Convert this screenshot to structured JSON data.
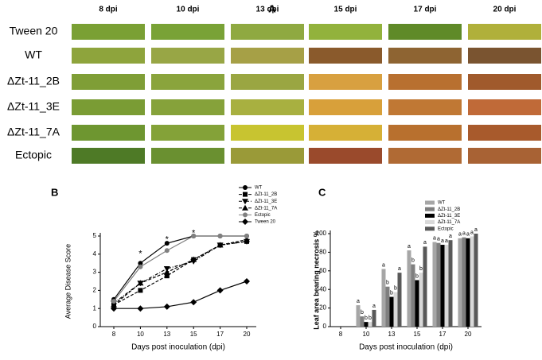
{
  "figure_a": {
    "panel_label": "A",
    "columns": [
      "8 dpi",
      "10 dpi",
      "13 dpi",
      "15 dpi",
      "17 dpi",
      "20 dpi"
    ],
    "rows": [
      "Tween 20",
      "WT",
      "ΔZt-11_2B",
      "ΔZt-11_3E",
      "ΔZt-11_7A",
      "Ectopic"
    ]
  },
  "chart_data": [
    {
      "type": "line",
      "panel_label": "B",
      "x_label": "Days post inoculation (dpi)",
      "y_label": "Average Disease Score",
      "categories": [
        "8",
        "10",
        "13",
        "15",
        "17",
        "20"
      ],
      "ylim": [
        0,
        5
      ],
      "yticks": [
        0,
        1,
        2,
        3,
        4,
        5
      ],
      "series": [
        {
          "name": "WT",
          "color": "#000000",
          "marker": "circle",
          "line_style": "solid",
          "values": [
            1.5,
            3.5,
            4.6,
            5,
            5,
            5
          ]
        },
        {
          "name": "ΔZt-11_2B",
          "color": "#000000",
          "marker": "square",
          "line_style": "dashed",
          "values": [
            1.2,
            2.0,
            2.8,
            3.7,
            4.5,
            4.7
          ]
        },
        {
          "name": "ΔZt-11_3E",
          "color": "#000000",
          "marker": "triangle-down",
          "line_style": "dashdot",
          "values": [
            1.3,
            2.4,
            3.2,
            3.6,
            4.5,
            4.7
          ]
        },
        {
          "name": "ΔZt-11_7A",
          "color": "#000000",
          "marker": "triangle-up",
          "line_style": "dashed",
          "values": [
            1.2,
            2.4,
            3.0,
            3.7,
            4.5,
            4.8
          ]
        },
        {
          "name": "Ectopic",
          "color": "#808080",
          "marker": "circle",
          "line_style": "solid",
          "values": [
            1.4,
            3.3,
            4.2,
            5,
            5,
            5
          ]
        },
        {
          "name": "Tween 20",
          "color": "#000000",
          "marker": "diamond",
          "line_style": "solid",
          "values": [
            1,
            1,
            1.1,
            1.35,
            2,
            2.5
          ]
        }
      ],
      "annotations": [
        {
          "text": "*",
          "x": "10",
          "y": 4.0
        },
        {
          "text": "*",
          "x": "13",
          "y": 4.8
        },
        {
          "text": "*",
          "x": "15",
          "y": 5.15
        }
      ]
    },
    {
      "type": "bar",
      "panel_label": "C",
      "x_label": "Days post inoculation (dpi)",
      "y_label": "Leaf area bearing necrosis %",
      "categories": [
        "8",
        "10",
        "13",
        "15",
        "17",
        "20"
      ],
      "ylim": [
        0,
        100
      ],
      "yticks": [
        0,
        20,
        40,
        60,
        80,
        100
      ],
      "series": [
        {
          "name": "WT",
          "color": "#a6a6a6",
          "values": [
            0,
            23,
            62,
            82,
            91,
            95
          ],
          "letters": [
            null,
            "a",
            "a",
            "a",
            "a",
            "a"
          ]
        },
        {
          "name": "ΔZt-11_2B",
          "color": "#7f7f7f",
          "values": [
            0,
            11,
            43,
            67,
            90,
            96
          ],
          "letters": [
            null,
            "b",
            "b",
            "b",
            "a",
            "a"
          ]
        },
        {
          "name": "ΔZt-11_3E",
          "color": "#000000",
          "values": [
            0,
            5,
            32,
            50,
            88,
            95
          ],
          "letters": [
            null,
            "b",
            "b",
            "b",
            "a",
            "a"
          ]
        },
        {
          "name": "ΔZt-11_7A",
          "color": "#d9d9d9",
          "values": [
            0,
            5,
            37,
            58,
            88,
            97
          ],
          "letters": [
            null,
            "b",
            "b",
            "b",
            "a",
            "a"
          ]
        },
        {
          "name": "Ectopic",
          "color": "#595959",
          "values": [
            0,
            18,
            58,
            86,
            93,
            100
          ],
          "letters": [
            null,
            "a",
            "a",
            "a",
            "a",
            "a"
          ]
        }
      ]
    }
  ]
}
